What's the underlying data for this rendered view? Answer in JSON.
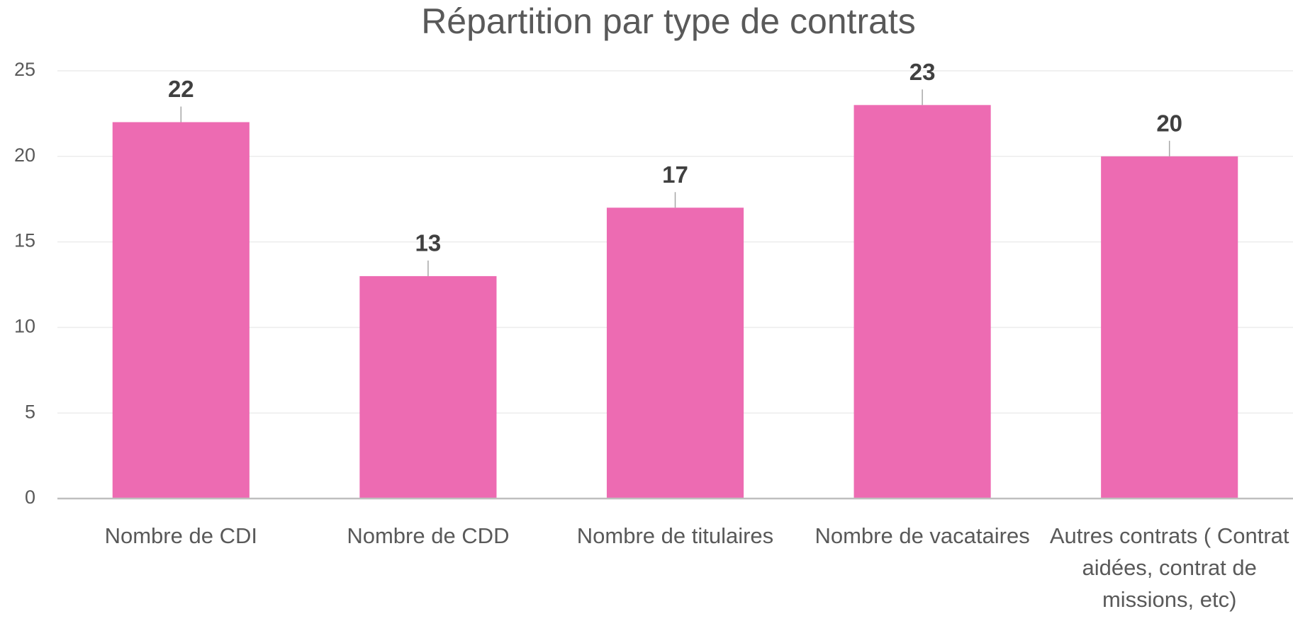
{
  "chart_data": {
    "type": "bar",
    "title": "Répartition par type de contrats",
    "categories": [
      "Nombre de CDI",
      "Nombre de CDD",
      "Nombre de titulaires",
      "Nombre de vacataires",
      "Autres contrats ( Contrat aidées, contrat de missions, etc)"
    ],
    "values": [
      22,
      13,
      17,
      23,
      20
    ],
    "color": "#ed6bb2",
    "ylim": [
      0,
      25
    ],
    "yticks": [
      0,
      5,
      10,
      15,
      20,
      25
    ],
    "grid": true
  }
}
